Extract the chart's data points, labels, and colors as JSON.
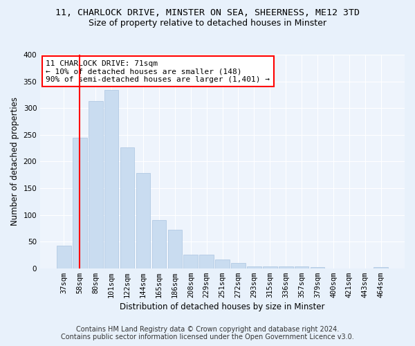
{
  "title_line1": "11, CHARLOCK DRIVE, MINSTER ON SEA, SHEERNESS, ME12 3TD",
  "title_line2": "Size of property relative to detached houses in Minster",
  "xlabel": "Distribution of detached houses by size in Minster",
  "ylabel": "Number of detached properties",
  "categories": [
    "37sqm",
    "58sqm",
    "80sqm",
    "101sqm",
    "122sqm",
    "144sqm",
    "165sqm",
    "186sqm",
    "208sqm",
    "229sqm",
    "251sqm",
    "272sqm",
    "293sqm",
    "315sqm",
    "336sqm",
    "357sqm",
    "379sqm",
    "400sqm",
    "421sqm",
    "443sqm",
    "464sqm"
  ],
  "values": [
    42,
    245,
    313,
    334,
    226,
    179,
    90,
    72,
    26,
    26,
    16,
    10,
    4,
    4,
    4,
    3,
    2,
    0,
    0,
    0,
    2
  ],
  "bar_color": "#c9dcf0",
  "bar_edge_color": "#aac4e0",
  "vline_color": "red",
  "vline_pos": 1.5,
  "annotation_text": "11 CHARLOCK DRIVE: 71sqm\n← 10% of detached houses are smaller (148)\n90% of semi-detached houses are larger (1,401) →",
  "annotation_box_color": "white",
  "annotation_box_edge": "red",
  "ylim": [
    0,
    400
  ],
  "yticks": [
    0,
    50,
    100,
    150,
    200,
    250,
    300,
    350,
    400
  ],
  "footer_line1": "Contains HM Land Registry data © Crown copyright and database right 2024.",
  "footer_line2": "Contains public sector information licensed under the Open Government Licence v3.0.",
  "bg_color": "#e8f1fb",
  "plot_bg_color": "#eef4fc",
  "grid_color": "#ffffff",
  "title_fontsize": 9.5,
  "subtitle_fontsize": 9.0,
  "axis_label_fontsize": 8.5,
  "tick_fontsize": 7.5,
  "annotation_fontsize": 8.0,
  "footer_fontsize": 7.0
}
